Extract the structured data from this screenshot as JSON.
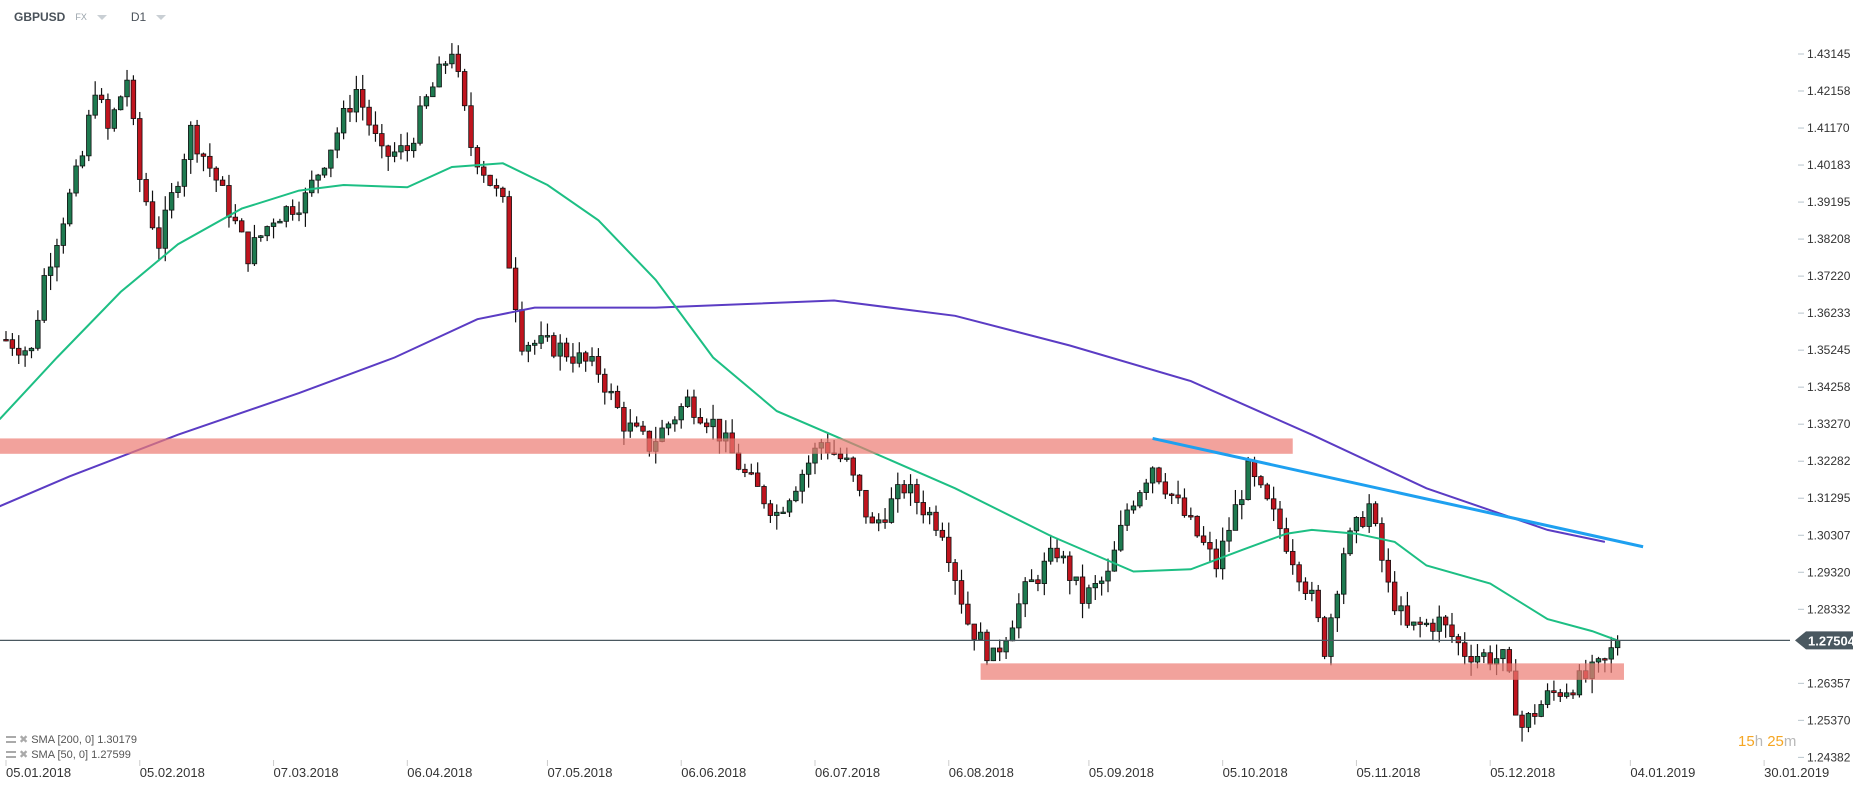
{
  "header": {
    "symbol": "GBPUSD",
    "market": "FX",
    "timeframe": "D1"
  },
  "timer": {
    "hours": "15",
    "h_unit": "h",
    "minutes": "25",
    "m_unit": "m"
  },
  "legend": [
    {
      "label": "SMA [200,  0] 1.30179"
    },
    {
      "label": "SMA [50,  0] 1.27599"
    }
  ],
  "chart_data": {
    "type": "candlestick",
    "title": "GBPUSD D1",
    "ylim": [
      1.24382,
      1.43145
    ],
    "y_ticks": [
      "1.43145",
      "1.42158",
      "1.41170",
      "1.40183",
      "1.39195",
      "1.38208",
      "1.37220",
      "1.36233",
      "1.35245",
      "1.34258",
      "1.33270",
      "1.32282",
      "1.31295",
      "1.30307",
      "1.29320",
      "1.28332",
      "1.27504",
      "1.26357",
      "1.25370",
      "1.24382"
    ],
    "current_price": "1.27504",
    "x_ticks": [
      {
        "day": 0,
        "label": "05.01.2018"
      },
      {
        "day": 21,
        "label": "05.02.2018"
      },
      {
        "day": 42,
        "label": "07.03.2018"
      },
      {
        "day": 63,
        "label": "06.04.2018"
      },
      {
        "day": 85,
        "label": "07.05.2018"
      },
      {
        "day": 106,
        "label": "06.06.2018"
      },
      {
        "day": 127,
        "label": "06.07.2018"
      },
      {
        "day": 148,
        "label": "06.08.2018"
      },
      {
        "day": 170,
        "label": "05.09.2018"
      },
      {
        "day": 191,
        "label": "05.10.2018"
      },
      {
        "day": 212,
        "label": "05.11.2018"
      },
      {
        "day": 233,
        "label": "05.12.2018"
      },
      {
        "day": 255,
        "label": "04.01.2019"
      },
      {
        "day": 276,
        "label": "30.01.2019"
      }
    ],
    "price_path": [
      [
        0,
        1.3553
      ],
      [
        4,
        1.352
      ],
      [
        6,
        1.372
      ],
      [
        9,
        1.388
      ],
      [
        12,
        1.404
      ],
      [
        14,
        1.423
      ],
      [
        16,
        1.411
      ],
      [
        19,
        1.425
      ],
      [
        21,
        1.398
      ],
      [
        24,
        1.381
      ],
      [
        29,
        1.411
      ],
      [
        33,
        1.398
      ],
      [
        38,
        1.378
      ],
      [
        42,
        1.388
      ],
      [
        47,
        1.393
      ],
      [
        51,
        1.407
      ],
      [
        55,
        1.422
      ],
      [
        59,
        1.404
      ],
      [
        63,
        1.406
      ],
      [
        66,
        1.419
      ],
      [
        70,
        1.433
      ],
      [
        73,
        1.407
      ],
      [
        78,
        1.391
      ],
      [
        79,
        1.376
      ],
      [
        81,
        1.355
      ],
      [
        87,
        1.353
      ],
      [
        93,
        1.347
      ],
      [
        97,
        1.333
      ],
      [
        101,
        1.327
      ],
      [
        107,
        1.339
      ],
      [
        111,
        1.333
      ],
      [
        116,
        1.319
      ],
      [
        121,
        1.309
      ],
      [
        128,
        1.328
      ],
      [
        132,
        1.322
      ],
      [
        136,
        1.305
      ],
      [
        141,
        1.316
      ],
      [
        147,
        1.305
      ],
      [
        151,
        1.28
      ],
      [
        155,
        1.27
      ],
      [
        160,
        1.288
      ],
      [
        165,
        1.299
      ],
      [
        169,
        1.286
      ],
      [
        173,
        1.292
      ],
      [
        176,
        1.31
      ],
      [
        180,
        1.322
      ],
      [
        184,
        1.311
      ],
      [
        190,
        1.295
      ],
      [
        195,
        1.32
      ],
      [
        200,
        1.305
      ],
      [
        205,
        1.286
      ],
      [
        207,
        1.273
      ],
      [
        210,
        1.299
      ],
      [
        214,
        1.311
      ],
      [
        217,
        1.289
      ],
      [
        220,
        1.278
      ],
      [
        225,
        1.28
      ],
      [
        229,
        1.272
      ],
      [
        235,
        1.27
      ],
      [
        238,
        1.252
      ],
      [
        242,
        1.26
      ],
      [
        248,
        1.265
      ],
      [
        251,
        1.269
      ],
      [
        253,
        1.275
      ]
    ],
    "series": [
      {
        "name": "SMA 200",
        "color": "#5b3cc4",
        "points": [
          [
            -1,
            1.3108
          ],
          [
            10,
            1.3188
          ],
          [
            27,
            1.3299
          ],
          [
            46,
            1.341
          ],
          [
            61,
            1.3505
          ],
          [
            74,
            1.3607
          ],
          [
            83,
            1.3638
          ],
          [
            102,
            1.3638
          ],
          [
            130,
            1.3657
          ],
          [
            149,
            1.3616
          ],
          [
            167,
            1.3537
          ],
          [
            186,
            1.3442
          ],
          [
            205,
            1.3299
          ],
          [
            223,
            1.3156
          ],
          [
            242,
            1.3045
          ],
          [
            251,
            1.3013
          ]
        ]
      },
      {
        "name": "SMA 50",
        "color": "#1dbf84",
        "points": [
          [
            -1,
            1.334
          ],
          [
            8,
            1.3505
          ],
          [
            18,
            1.368
          ],
          [
            27,
            1.3807
          ],
          [
            37,
            1.3902
          ],
          [
            46,
            1.395
          ],
          [
            53,
            1.3965
          ],
          [
            63,
            1.3959
          ],
          [
            70,
            1.4013
          ],
          [
            78,
            1.4023
          ],
          [
            85,
            1.3965
          ],
          [
            93,
            1.3871
          ],
          [
            102,
            1.3712
          ],
          [
            111,
            1.3505
          ],
          [
            121,
            1.3362
          ],
          [
            134,
            1.3267
          ],
          [
            149,
            1.3156
          ],
          [
            164,
            1.3029
          ],
          [
            177,
            1.2934
          ],
          [
            186,
            1.294
          ],
          [
            194,
            1.2991
          ],
          [
            201,
            1.3035
          ],
          [
            205,
            1.3045
          ],
          [
            212,
            1.3035
          ],
          [
            218,
            1.3013
          ],
          [
            223,
            1.295
          ],
          [
            233,
            1.2902
          ],
          [
            242,
            1.2807
          ],
          [
            249,
            1.2775
          ],
          [
            253,
            1.275
          ]
        ]
      }
    ],
    "annotations": {
      "resistance_zone": {
        "from_day": -1,
        "to_day": 202,
        "low": 1.3248,
        "high": 1.3289,
        "color": "#ec7b72"
      },
      "support_zone": {
        "from_day": 153,
        "to_day": 254,
        "low": 1.2645,
        "high": 1.2689,
        "color": "#ec7b72"
      },
      "trendline": {
        "from": [
          180,
          1.3289
        ],
        "to": [
          257,
          1.3
        ],
        "color": "#1ea0f0"
      }
    },
    "colors": {
      "up": "#1e7a50",
      "down": "#c0141e",
      "price_line": "#4a5860"
    }
  }
}
